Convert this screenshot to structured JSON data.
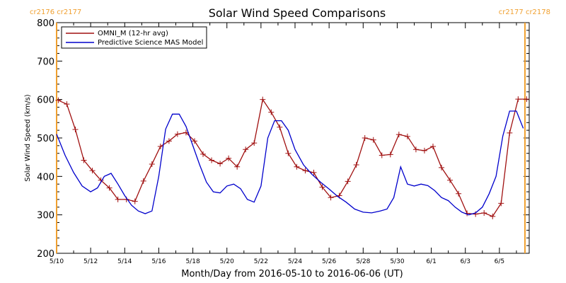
{
  "chart_data": {
    "type": "line",
    "title": "Solar Wind Speed Comparisons",
    "ylabel": "Solar Wind Speed (km/s)",
    "xlabel": "Month/Day from 2016-05-10 to 2016-06-06 (UT)",
    "x_range_days": [
      0,
      27.75
    ],
    "ylim": [
      200,
      800
    ],
    "yticks": [
      200,
      300,
      400,
      500,
      600,
      700,
      800
    ],
    "xticks": [
      {
        "day": 0,
        "label": "5/10"
      },
      {
        "day": 2,
        "label": "5/12"
      },
      {
        "day": 4,
        "label": "5/14"
      },
      {
        "day": 6,
        "label": "5/16"
      },
      {
        "day": 8,
        "label": "5/18"
      },
      {
        "day": 10,
        "label": "5/20"
      },
      {
        "day": 12,
        "label": "5/22"
      },
      {
        "day": 14,
        "label": "5/24"
      },
      {
        "day": 16,
        "label": "5/26"
      },
      {
        "day": 18,
        "label": "5/28"
      },
      {
        "day": 20,
        "label": "5/30"
      },
      {
        "day": 22,
        "label": "6/1"
      },
      {
        "day": 24,
        "label": "6/3"
      },
      {
        "day": 26,
        "label": "6/5"
      }
    ],
    "carrington_markers": [
      {
        "day": 0,
        "labels": [
          "cr2176",
          "cr2177"
        ]
      },
      {
        "day": 27.5,
        "labels": [
          "cr2177",
          "cr2178"
        ]
      }
    ],
    "legend": "top-left",
    "series": [
      {
        "name": "OMNI_M (12-hr avg)",
        "color": "#a01010",
        "marker": "plus",
        "x": [
          0.1,
          0.6,
          1.1,
          1.6,
          2.1,
          2.6,
          3.1,
          3.6,
          4.1,
          4.6,
          5.1,
          5.6,
          6.1,
          6.6,
          7.1,
          7.6,
          8.1,
          8.6,
          9.1,
          9.6,
          10.1,
          10.6,
          11.1,
          11.6,
          12.1,
          12.6,
          13.1,
          13.6,
          14.1,
          14.6,
          15.1,
          15.6,
          16.1,
          16.6,
          17.1,
          17.6,
          18.1,
          18.6,
          19.1,
          19.6,
          20.1,
          20.6,
          21.1,
          21.6,
          22.1,
          22.6,
          23.1,
          23.6,
          24.1,
          24.6,
          25.1,
          25.6,
          26.1,
          26.6,
          27.1,
          27.6
        ],
        "y": [
          598,
          588,
          522,
          442,
          415,
          390,
          370,
          340,
          340,
          335,
          388,
          432,
          478,
          492,
          510,
          514,
          492,
          458,
          442,
          433,
          447,
          425,
          470,
          487,
          600,
          567,
          528,
          460,
          425,
          415,
          410,
          372,
          345,
          350,
          387,
          430,
          500,
          495,
          455,
          457,
          509,
          504,
          470,
          467,
          478,
          423,
          390,
          355,
          304,
          302,
          305,
          296,
          330,
          513,
          601,
          601
        ]
      },
      {
        "name": "Predictive Science MAS Model",
        "color": "#0000cc",
        "x": [
          0.0,
          0.5,
          1.0,
          1.5,
          2.0,
          2.4,
          2.8,
          3.2,
          3.6,
          4.0,
          4.4,
          4.8,
          5.2,
          5.6,
          6.0,
          6.4,
          6.8,
          7.2,
          7.6,
          8.0,
          8.4,
          8.8,
          9.2,
          9.6,
          10.0,
          10.4,
          10.8,
          11.2,
          11.6,
          12.0,
          12.4,
          12.8,
          13.2,
          13.6,
          14.0,
          14.5,
          15.0,
          15.5,
          16.0,
          16.5,
          17.0,
          17.5,
          18.0,
          18.5,
          19.0,
          19.4,
          19.8,
          20.2,
          20.6,
          21.0,
          21.4,
          21.8,
          22.2,
          22.6,
          23.0,
          23.4,
          23.8,
          24.2,
          24.6,
          25.0,
          25.4,
          25.8,
          26.2,
          26.6,
          27.0,
          27.4
        ],
        "y": [
          510,
          455,
          410,
          375,
          360,
          370,
          400,
          408,
          380,
          350,
          325,
          310,
          303,
          310,
          400,
          523,
          562,
          562,
          530,
          480,
          430,
          385,
          360,
          357,
          375,
          380,
          368,
          340,
          333,
          375,
          500,
          545,
          545,
          520,
          470,
          430,
          405,
          385,
          367,
          348,
          333,
          315,
          307,
          305,
          310,
          315,
          345,
          425,
          380,
          375,
          380,
          376,
          363,
          345,
          337,
          320,
          307,
          300,
          305,
          320,
          355,
          400,
          505,
          570,
          570,
          525
        ]
      }
    ]
  }
}
